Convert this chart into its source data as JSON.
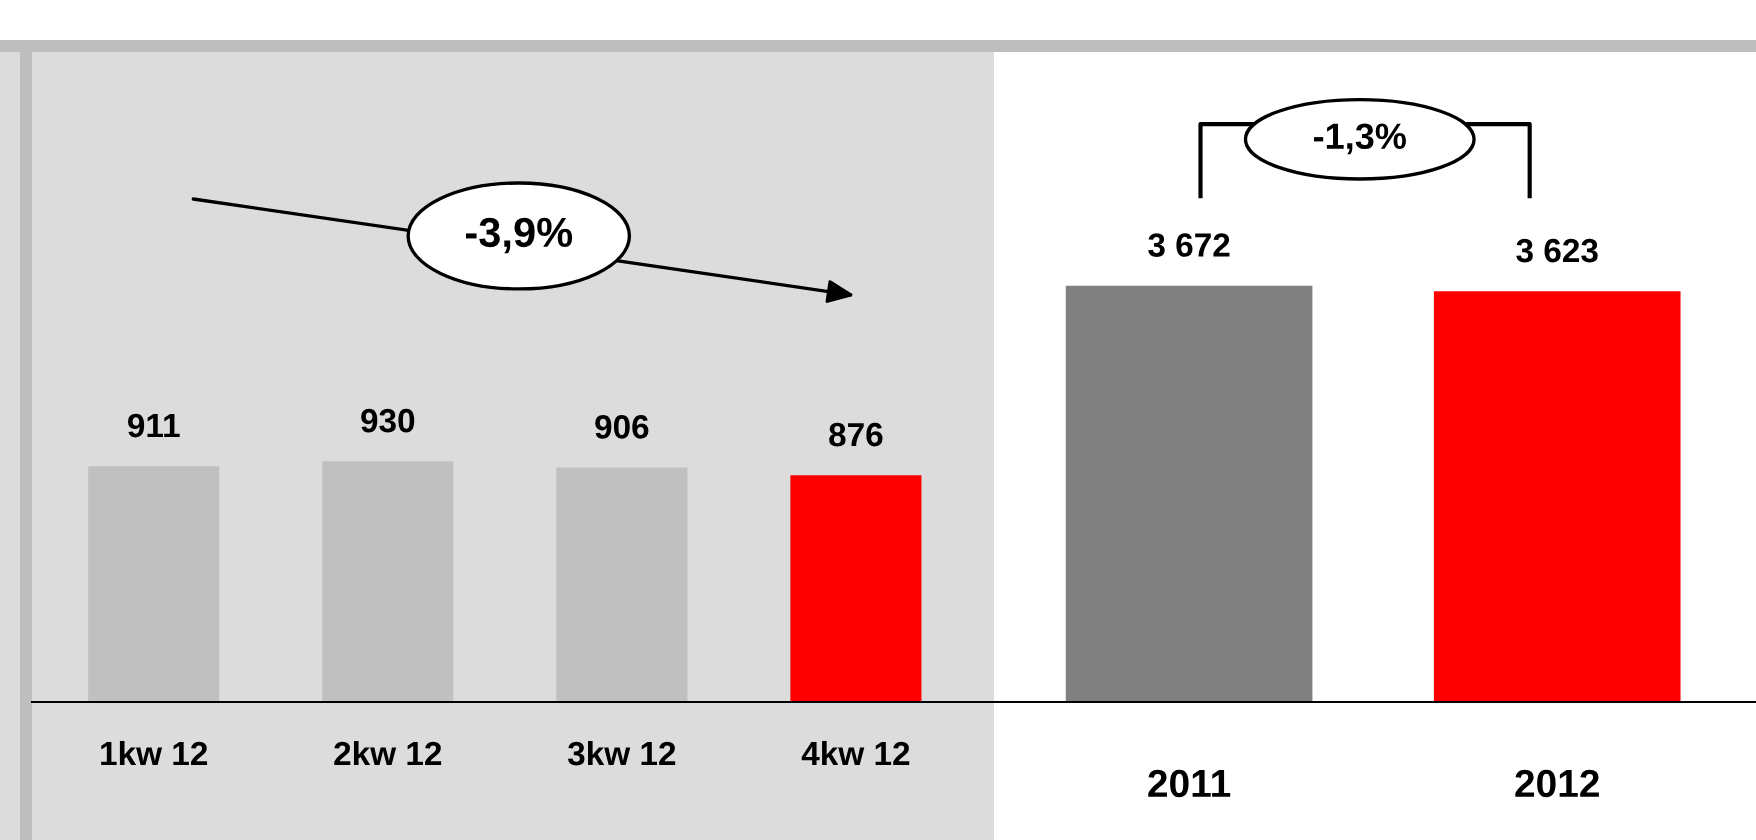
{
  "chart_data": [
    {
      "type": "bar",
      "categories": [
        "1kw 12",
        "2kw 12",
        "3kw 12",
        "4kw 12"
      ],
      "values": [
        911,
        930,
        906,
        876
      ],
      "colors": [
        "#c0c0c0",
        "#c0c0c0",
        "#c0c0c0",
        "#ff0000"
      ],
      "data_labels": true,
      "annotations": [
        "-3,9%"
      ],
      "grid": false,
      "legend": false
    },
    {
      "type": "bar",
      "categories": [
        "2011",
        "2012"
      ],
      "values": [
        3672,
        3623
      ],
      "colors": [
        "#808080",
        "#ff0000"
      ],
      "value_labels": [
        "3 672",
        "3 623"
      ],
      "annotations": [
        "-1,3%"
      ],
      "grid": false,
      "legend": false
    }
  ]
}
